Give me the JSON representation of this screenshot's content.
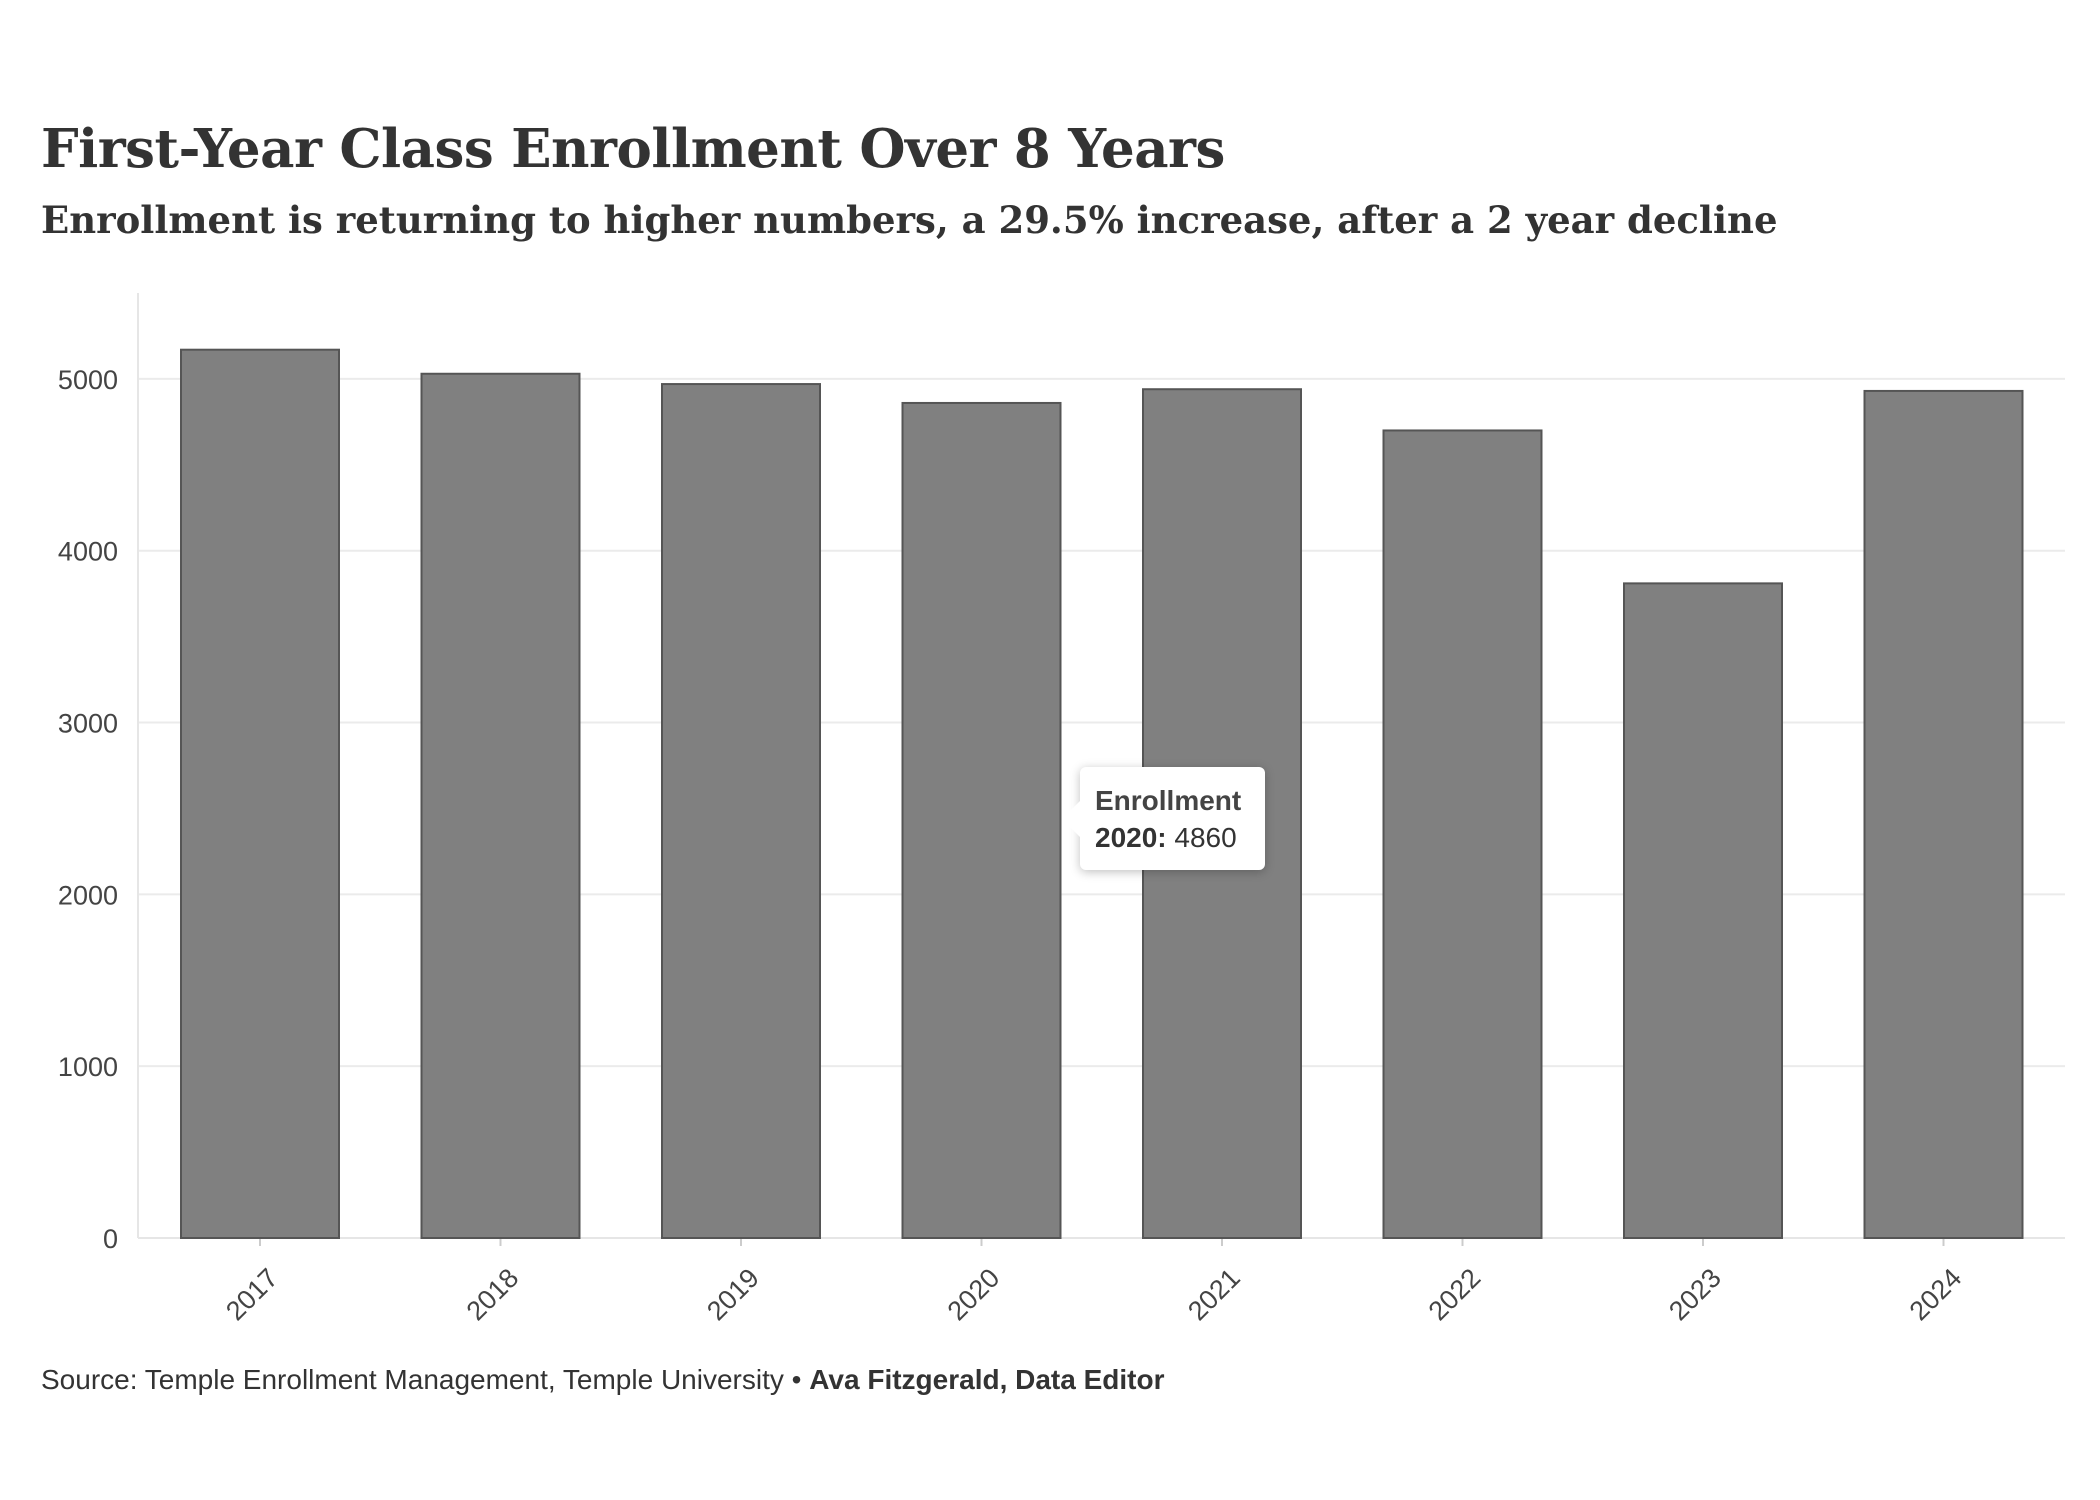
{
  "chart_data": {
    "type": "bar",
    "title": "First-Year Class Enrollment Over 8 Years",
    "subtitle": "Enrollment is returning to higher numbers, a 29.5% increase, after a 2 year decline",
    "categories": [
      "2017",
      "2018",
      "2019",
      "2020",
      "2021",
      "2022",
      "2023",
      "2024"
    ],
    "series": [
      {
        "name": "Enrollment",
        "values": [
          5170,
          5030,
          4970,
          4860,
          4940,
          4700,
          3810,
          4930
        ]
      }
    ],
    "xlabel": "",
    "ylabel": "",
    "ylim": [
      0,
      5500
    ],
    "yticks": [
      0,
      1000,
      2000,
      3000,
      4000,
      5000
    ],
    "grid": true,
    "legend": "none",
    "bar_color": "#808080",
    "bar_stroke": "#555555"
  },
  "tooltip": {
    "title": "Enrollment",
    "year_label": "2020:",
    "value": "4860"
  },
  "footer": {
    "source": "Source: Temple Enrollment Management, Temple University • ",
    "credit": "Ava Fitzgerald, Data Editor"
  }
}
